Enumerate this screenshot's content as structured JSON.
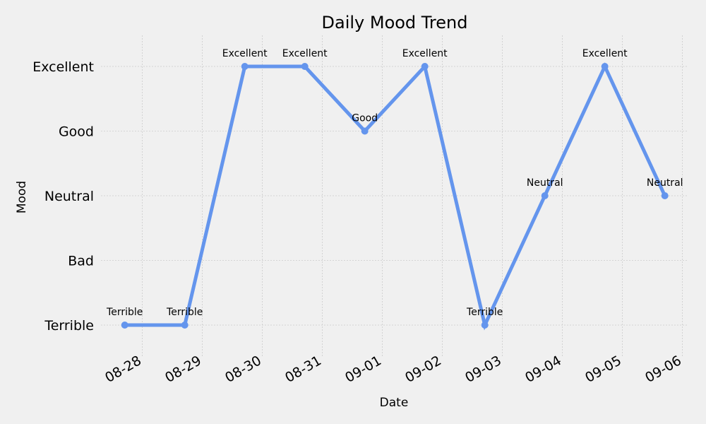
{
  "chart_data": {
    "type": "line",
    "title": "Daily Mood Trend",
    "xlabel": "Date",
    "ylabel": "Mood",
    "y_categories": [
      "Terrible",
      "Bad",
      "Neutral",
      "Good",
      "Excellent"
    ],
    "x_tick_labels": [
      "08-28",
      "08-29",
      "08-30",
      "08-31",
      "09-01",
      "09-02",
      "09-03",
      "09-04",
      "09-05",
      "09-06"
    ],
    "x": [
      "08-27 17:00",
      "08-28 17:00",
      "08-29 17:00",
      "08-30 17:00",
      "08-31 17:00",
      "09-01 17:00",
      "09-02 17:00",
      "09-03 17:00",
      "09-04 17:00",
      "09-05 17:00"
    ],
    "values": [
      "Terrible",
      "Terrible",
      "Excellent",
      "Excellent",
      "Good",
      "Excellent",
      "Terrible",
      "Neutral",
      "Excellent",
      "Neutral"
    ],
    "grid": true,
    "line_color": "#6495ed",
    "background": "#f0f0f0"
  }
}
